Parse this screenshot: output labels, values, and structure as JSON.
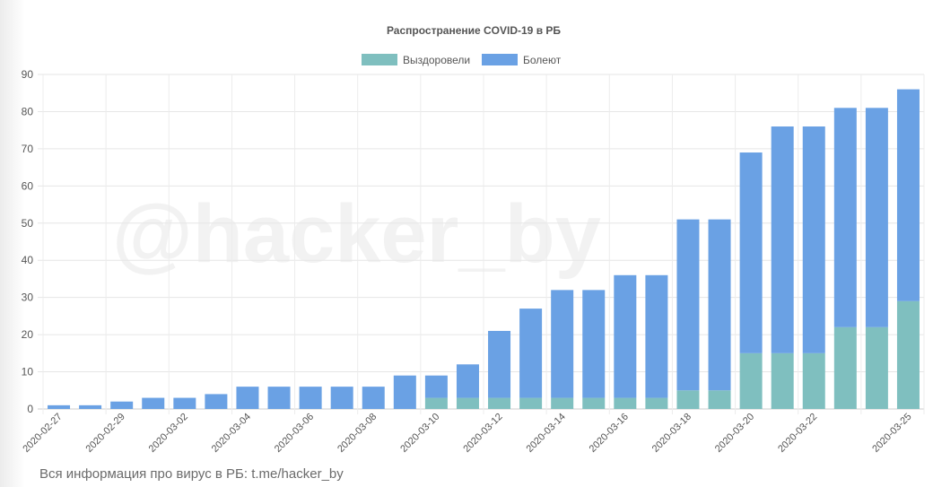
{
  "watermark": "@hacker_by",
  "footer": "Вся информация про вирус в РБ: t.me/hacker_by",
  "chart_data": {
    "type": "bar",
    "stacked": true,
    "title": "Распространение COVID-19 в РБ",
    "xlabel": "",
    "ylabel": "",
    "ylim": [
      0,
      90
    ],
    "yticks": [
      0,
      10,
      20,
      30,
      40,
      50,
      60,
      70,
      80,
      90
    ],
    "grid": true,
    "legend_position": "top",
    "categories": [
      "2020-02-27",
      "2020-02-28",
      "2020-02-29",
      "2020-03-01",
      "2020-03-02",
      "2020-03-03",
      "2020-03-04",
      "2020-03-05",
      "2020-03-06",
      "2020-03-07",
      "2020-03-08",
      "2020-03-09",
      "2020-03-10",
      "2020-03-11",
      "2020-03-12",
      "2020-03-13",
      "2020-03-14",
      "2020-03-15",
      "2020-03-16",
      "2020-03-17",
      "2020-03-18",
      "2020-03-19",
      "2020-03-20",
      "2020-03-21",
      "2020-03-22",
      "2020-03-23",
      "2020-03-24",
      "2020-03-25"
    ],
    "x_tick_labels": [
      "2020-02-27",
      "2020-02-29",
      "2020-03-02",
      "2020-03-04",
      "2020-03-06",
      "2020-03-08",
      "2020-03-10",
      "2020-03-12",
      "2020-03-14",
      "2020-03-16",
      "2020-03-18",
      "2020-03-20",
      "2020-03-22",
      "2020-03-25"
    ],
    "series": [
      {
        "name": "Выздоровели",
        "color": "#7fbfbf",
        "values": [
          0,
          0,
          0,
          0,
          0,
          0,
          0,
          0,
          0,
          0,
          0,
          0,
          3,
          3,
          3,
          3,
          3,
          3,
          3,
          3,
          5,
          5,
          15,
          15,
          15,
          22,
          22,
          29
        ]
      },
      {
        "name": "Болеют",
        "color": "#6aa1e4",
        "values": [
          1,
          1,
          2,
          3,
          3,
          4,
          6,
          6,
          6,
          6,
          6,
          9,
          6,
          9,
          18,
          24,
          29,
          29,
          33,
          33,
          46,
          46,
          54,
          61,
          61,
          59,
          59,
          57
        ]
      }
    ]
  }
}
